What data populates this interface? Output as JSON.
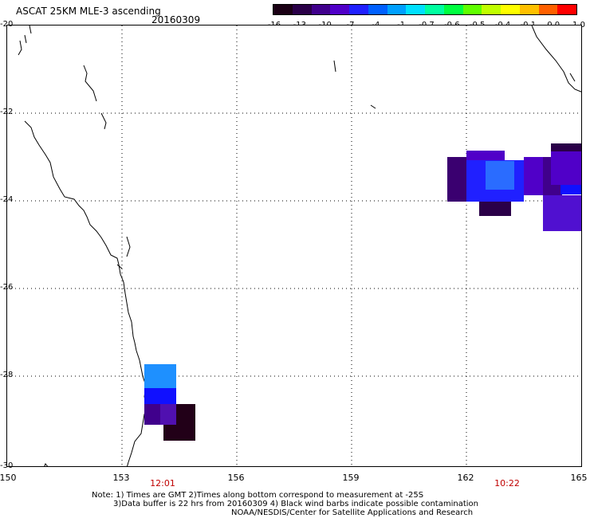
{
  "header": {
    "title": "ASCAT 25KM MLE-3 ascending",
    "date": "20160309"
  },
  "colorbar": {
    "colors": [
      "#1a0014",
      "#2a0048",
      "#40008c",
      "#5000c8",
      "#2020ff",
      "#0060ff",
      "#00a0ff",
      "#00e0ff",
      "#00ffa0",
      "#00ff40",
      "#60ff00",
      "#c0ff00",
      "#ffff00",
      "#ffc000",
      "#ff6000",
      "#ff0000"
    ],
    "labels": [
      "-16",
      "-13",
      "-10",
      "-7",
      "-4",
      "-1",
      "-0.7",
      "-0.6",
      "-0.5",
      "-0.4",
      "-0.1",
      "0.0",
      "1.0"
    ]
  },
  "map": {
    "lat_labels": [
      "-20",
      "-22",
      "-24",
      "-26",
      "-28",
      "-30"
    ],
    "lon_labels": [
      "150",
      "153",
      "156",
      "159",
      "162",
      "165"
    ],
    "time_labels": [
      "12:01",
      "10:22"
    ]
  },
  "footer": {
    "line1": "Note: 1) Times are GMT 2)Times along bottom correspond to measurement at -25S",
    "line2": "3)Data buffer is 22 hrs from 20160309 4) Black wind barbs indicate possible contamination",
    "line3": "NOAA/NESDIS/Center for Satellite Applications and Research"
  }
}
